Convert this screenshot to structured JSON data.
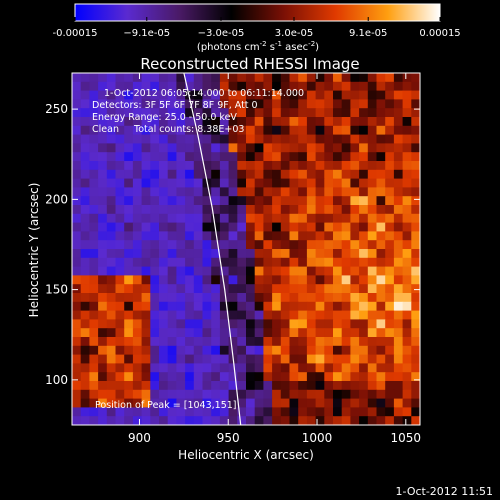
{
  "chart_data": {
    "type": "heatmap",
    "title": "Reconstructed RHESSI Image",
    "xlabel": "Heliocentric X (arcsec)",
    "ylabel": "Heliocentric Y (arcsec)",
    "xlim": [
      862,
      1058
    ],
    "ylim": [
      75,
      270
    ],
    "x_ticks": [
      900,
      950,
      1000,
      1050
    ],
    "y_ticks": [
      100,
      150,
      200,
      250
    ],
    "colorbar": {
      "min": -0.00015,
      "max": 0.00015,
      "tick_values": [
        -0.00015,
        -9.1e-05,
        -3e-05,
        3e-05,
        9.1e-05,
        0.00015
      ],
      "tick_labels": [
        "-0.00015",
        "−9.1e-05",
        "−3.0e-05",
        "3.0e-05",
        "9.1e-05",
        "0.00015"
      ],
      "label_main": "(photons cm",
      "label_exp1": "-2",
      "label_mid1": " s",
      "label_exp2": "-1",
      "label_mid2": " asec",
      "label_exp3": "-2",
      "label_end": ")",
      "colors": [
        "#0000ff",
        "#5a2ad0",
        "#4a1a66",
        "#000000",
        "#7a1005",
        "#e03a00",
        "#ff9f10",
        "#ffffff"
      ]
    },
    "limb": {
      "x": [
        925,
        933,
        941,
        948,
        953,
        957
      ],
      "y": [
        270,
        235,
        195,
        150,
        110,
        75
      ]
    },
    "peak": {
      "x": 1043,
      "y": 151
    },
    "annotations": [
      "1-Oct-2012 06:05:14.000 to 06:11:14.000",
      "Detectors: 3F 5F 6F 7F 8F 9F, Att 0",
      "Energy Range: 25.0 - 50.0 keV",
      "Clean     Total counts: 8.38E+03",
      "Position of Peak = [1043,151]"
    ]
  },
  "footer": {
    "timestamp": "1-Oct-2012 11:51"
  }
}
